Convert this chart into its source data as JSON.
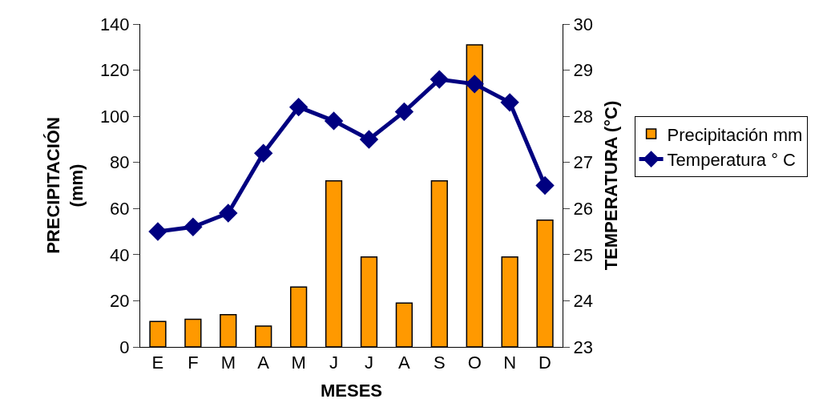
{
  "chart_data": {
    "type": "bar",
    "categories": [
      "E",
      "F",
      "M",
      "A",
      "M",
      "J",
      "J",
      "A",
      "S",
      "O",
      "N",
      "D"
    ],
    "xlabel": "MESES",
    "ylabel": "PRECIPITACIÓN\n(mm)",
    "y2label": "TEMPERATURA (°C)",
    "series": [
      {
        "name": "Precipitación mm",
        "color": "#ff9900",
        "values": [
          11,
          12,
          14,
          9,
          26,
          72,
          39,
          19,
          72,
          131,
          39,
          55
        ]
      },
      {
        "name": "Temperatura ° C",
        "type": "line",
        "axis": "y2",
        "color": "#000080",
        "marker": "diamond",
        "values": [
          25.5,
          25.6,
          25.9,
          27.2,
          28.2,
          27.9,
          27.5,
          28.1,
          28.8,
          28.7,
          28.3,
          26.5
        ]
      }
    ],
    "ylim": [
      0,
      140
    ],
    "yticks": [
      0,
      20,
      40,
      60,
      80,
      100,
      120,
      140
    ],
    "y2lim": [
      23,
      30
    ],
    "y2ticks": [
      23,
      24,
      25,
      26,
      27,
      28,
      29,
      30
    ],
    "legend": "right"
  }
}
